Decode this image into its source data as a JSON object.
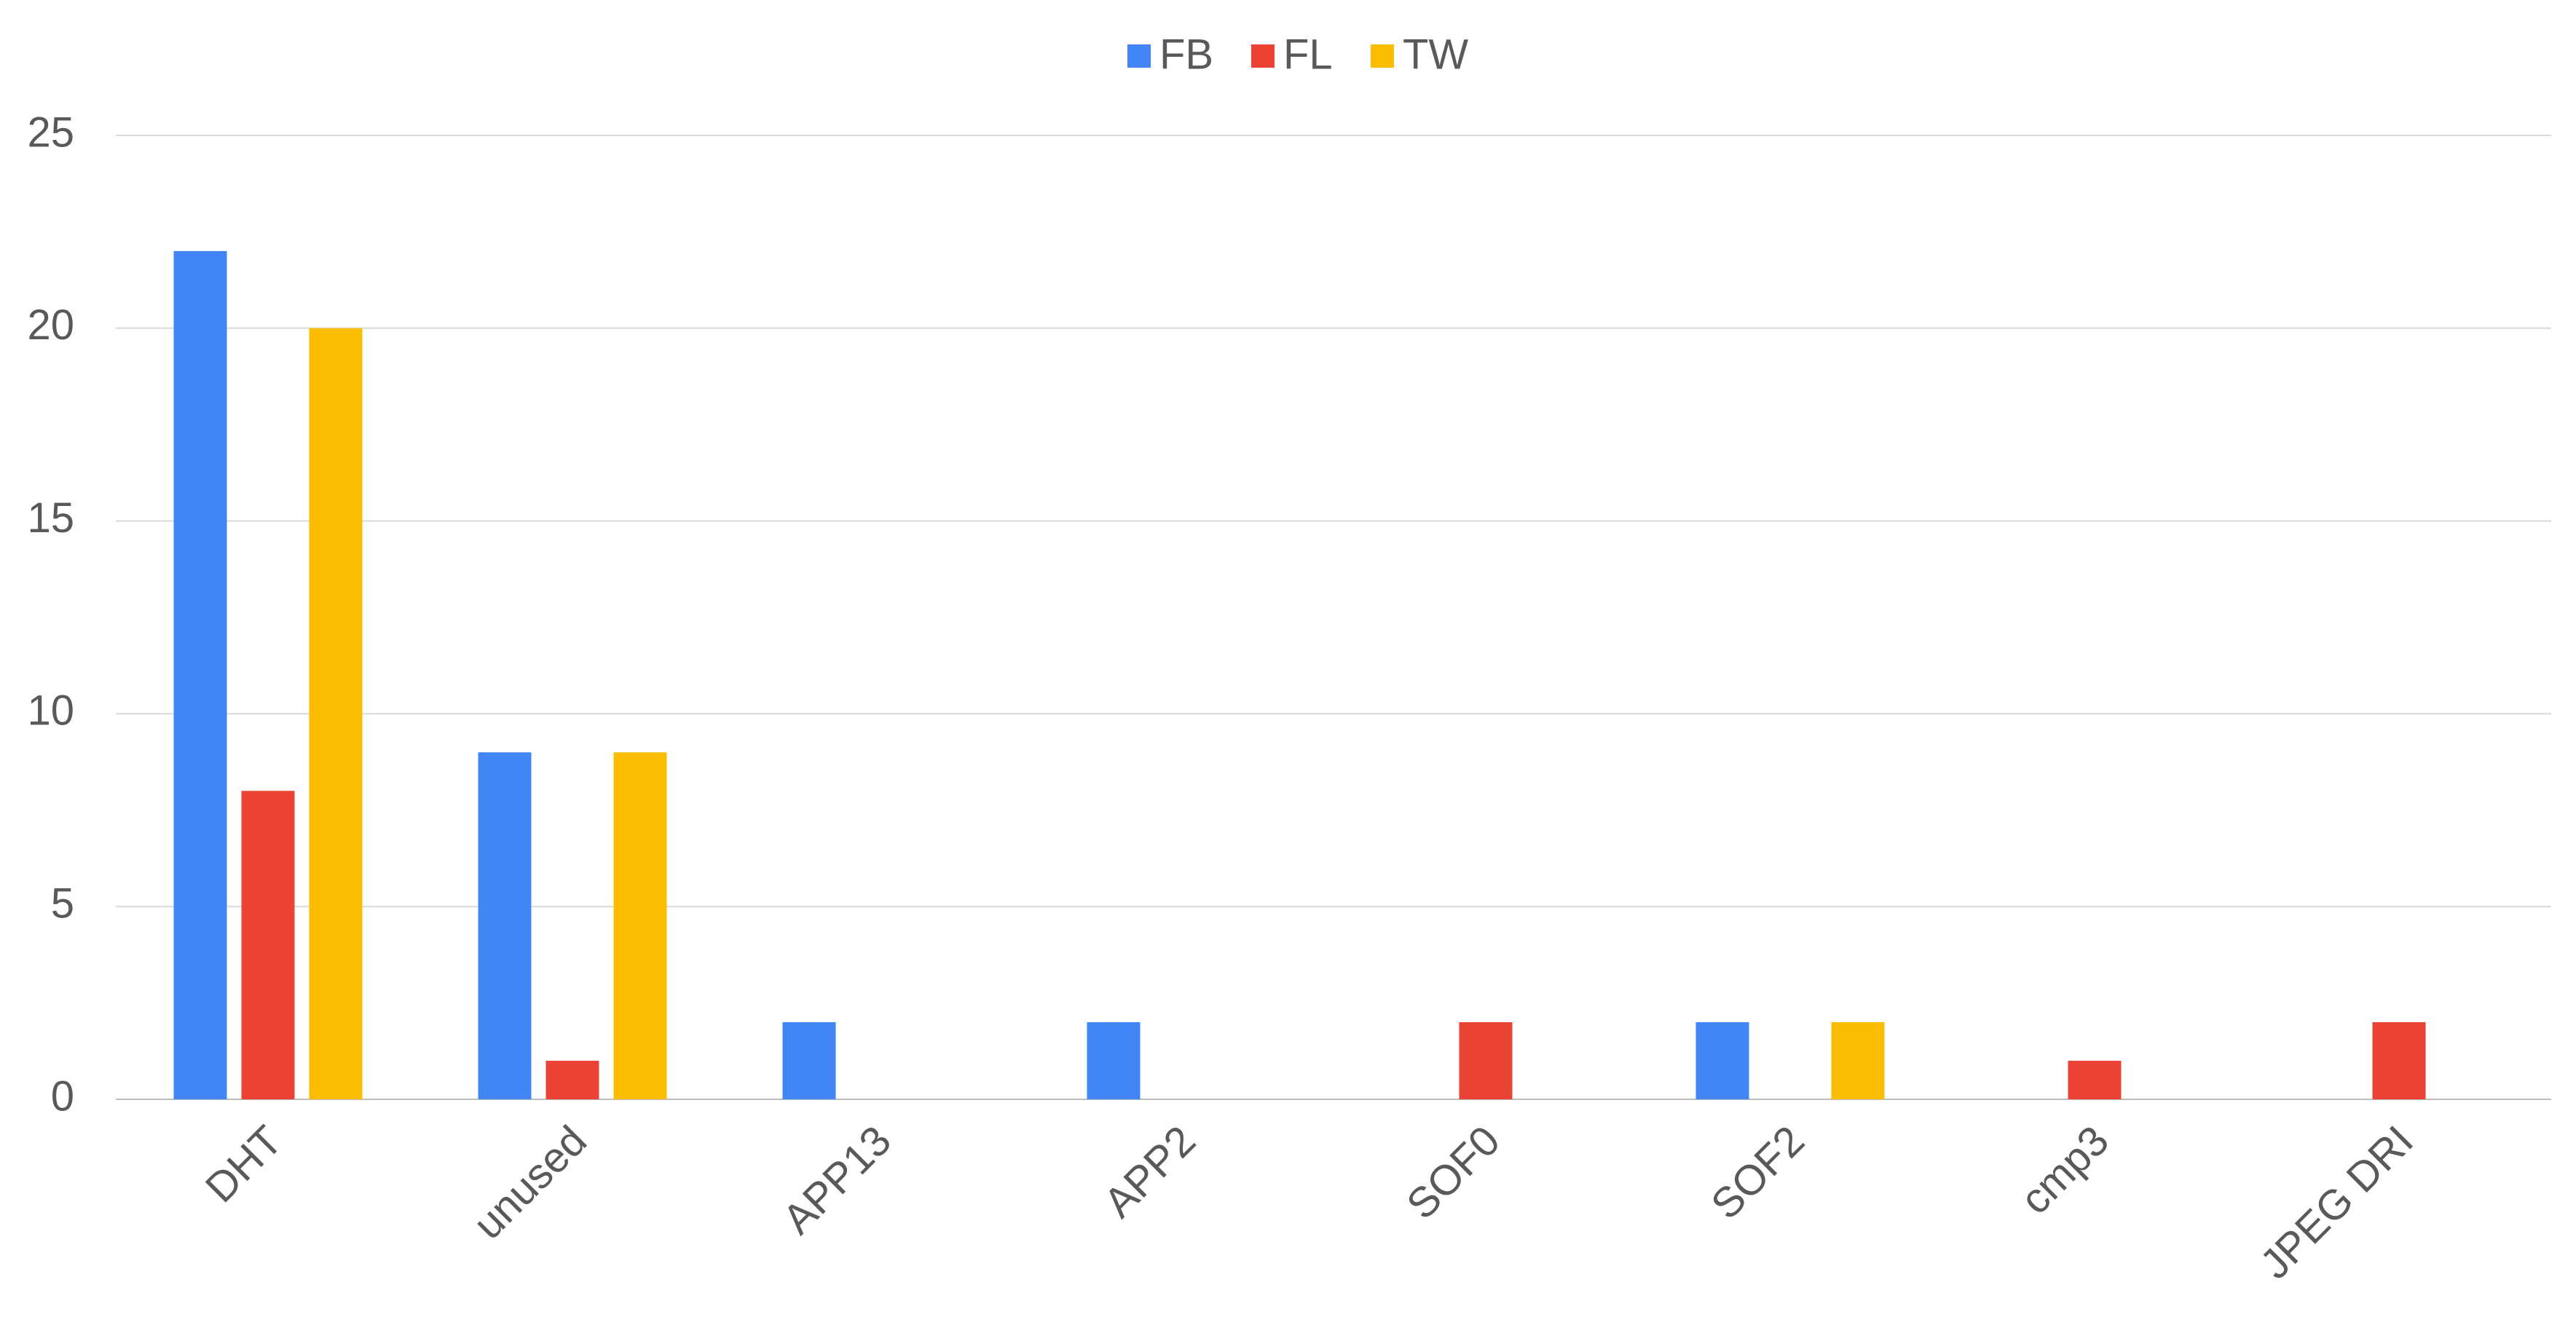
{
  "chart_data": {
    "type": "bar",
    "categories": [
      "DHT",
      "unused",
      "APP13",
      "APP2",
      "SOF0",
      "SOF2",
      "cmp3",
      "JPEG DRI"
    ],
    "series": [
      {
        "name": "FB",
        "color": "#4285f4",
        "values": [
          22,
          9,
          2,
          2,
          0,
          2,
          0,
          0
        ]
      },
      {
        "name": "FL",
        "color": "#ea4335",
        "values": [
          8,
          1,
          0,
          0,
          2,
          0,
          1,
          2
        ]
      },
      {
        "name": "TW",
        "color": "#fbbc04",
        "values": [
          20,
          9,
          0,
          0,
          0,
          2,
          0,
          0
        ]
      }
    ],
    "ylim": [
      0,
      25
    ],
    "yticks": [
      0,
      5,
      10,
      15,
      20,
      25
    ],
    "grid": true,
    "legend": "top"
  }
}
